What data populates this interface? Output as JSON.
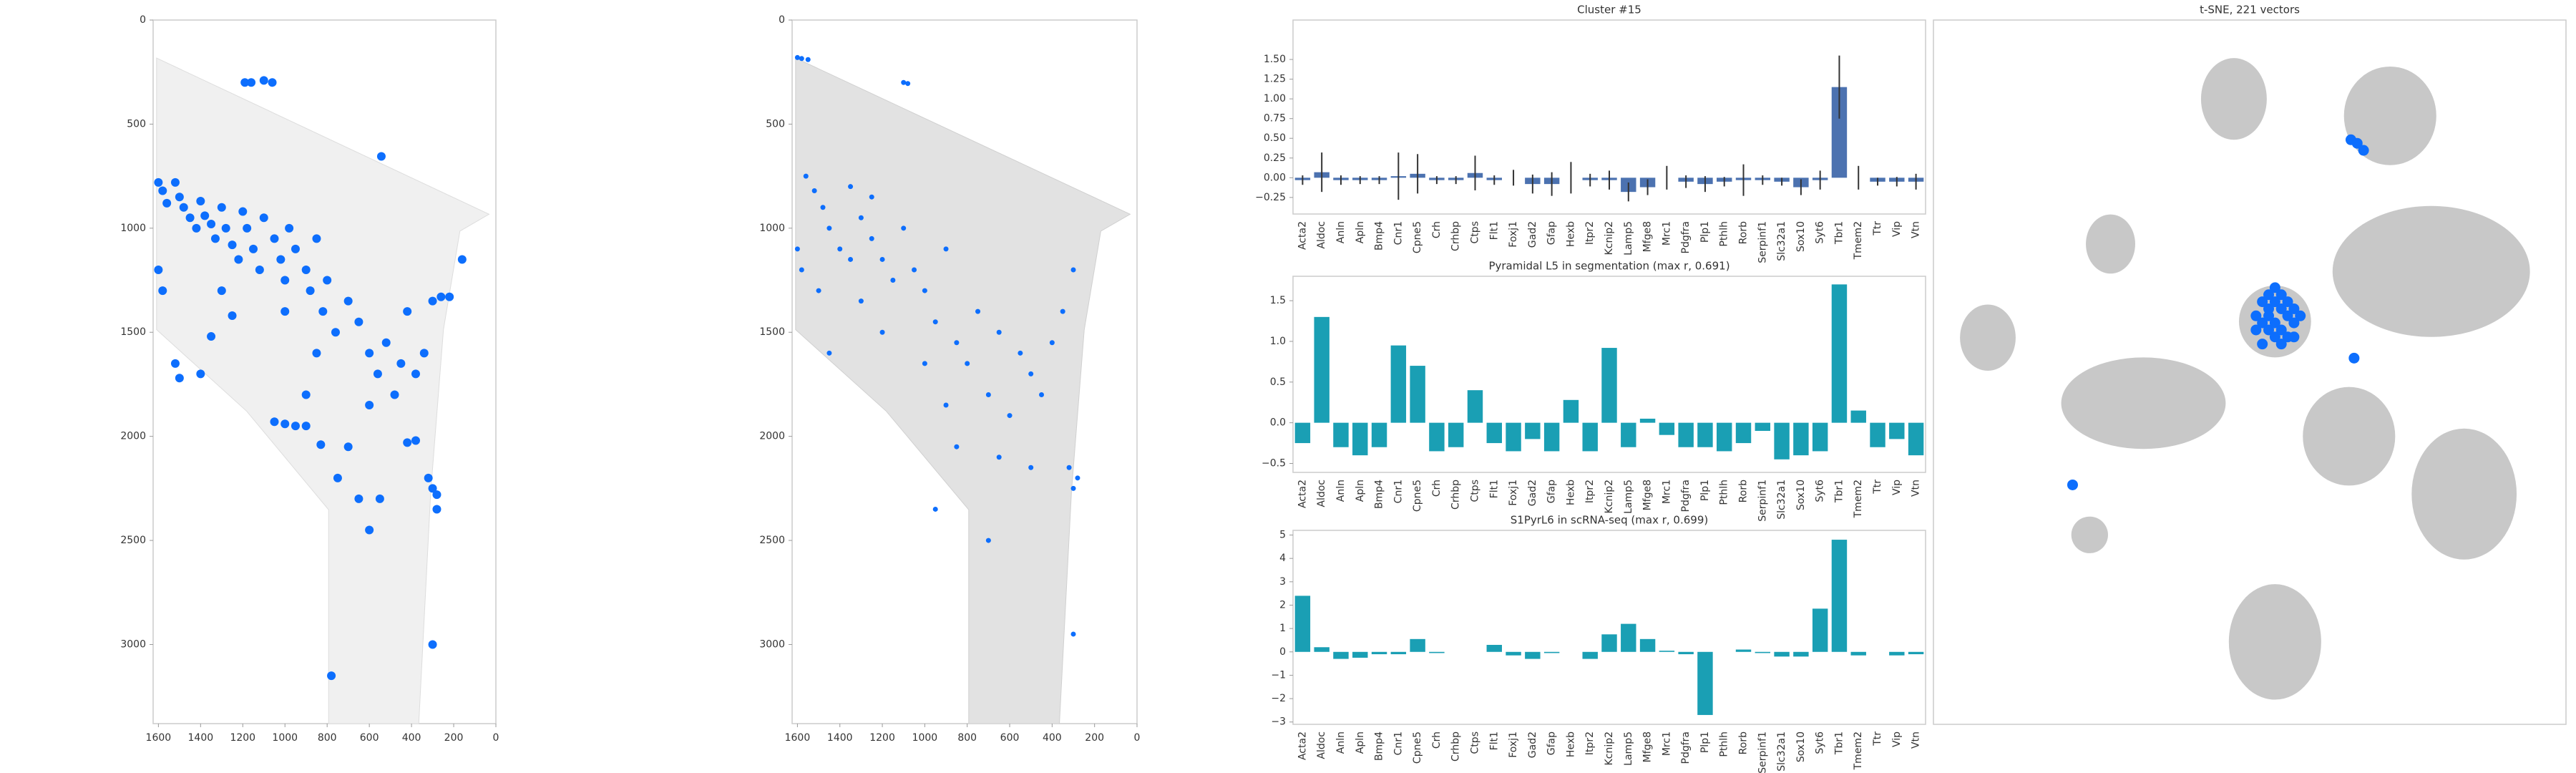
{
  "chart_data": [
    {
      "type": "scatter",
      "color": "#0d6efd",
      "xlim": [
        1625,
        0
      ],
      "ylim": [
        3380,
        0
      ],
      "xticks": [
        1600,
        1400,
        1200,
        1000,
        800,
        600,
        400,
        200,
        0
      ],
      "yticks": [
        0,
        500,
        1000,
        1500,
        2000,
        2500,
        3000
      ],
      "x": [
        1190,
        1160,
        1100,
        1060,
        543,
        1600,
        1580,
        1560,
        1520,
        1500,
        1480,
        1450,
        1420,
        1400,
        1380,
        1350,
        1330,
        1300,
        1280,
        1250,
        1220,
        1200,
        1180,
        1150,
        1120,
        1100,
        1050,
        1020,
        1000,
        980,
        950,
        900,
        880,
        850,
        820,
        800,
        760,
        700,
        650,
        600,
        560,
        520,
        480,
        450,
        420,
        380,
        340,
        300,
        260,
        220,
        160,
        1600,
        1580,
        1520,
        1500,
        1400,
        1350,
        1300,
        1250,
        1000,
        1050,
        1000,
        950,
        900,
        830,
        750,
        650,
        550,
        600,
        320,
        300,
        280,
        280,
        300,
        780,
        850,
        900,
        600,
        700,
        420,
        380
      ],
      "values": [
        300,
        300,
        290,
        300,
        655,
        780,
        820,
        880,
        780,
        850,
        900,
        950,
        1000,
        870,
        940,
        980,
        1050,
        900,
        1000,
        1080,
        1150,
        920,
        1000,
        1100,
        1200,
        950,
        1050,
        1150,
        1250,
        1000,
        1100,
        1200,
        1300,
        1050,
        1400,
        1250,
        1500,
        1350,
        1450,
        1600,
        1700,
        1550,
        1800,
        1650,
        1400,
        1700,
        1600,
        1350,
        1330,
        1330,
        1150,
        1200,
        1300,
        1650,
        1720,
        1700,
        1520,
        1300,
        1420,
        1400,
        1930,
        1940,
        1950,
        1950,
        2040,
        2200,
        2300,
        2300,
        2450,
        2200,
        2250,
        2280,
        2350,
        3000,
        3150,
        1600,
        1800,
        1850,
        2050,
        2030,
        2020
      ]
    },
    {
      "type": "scatter",
      "color": "#0d6efd",
      "xlim": [
        1625,
        0
      ],
      "ylim": [
        3380,
        0
      ],
      "xticks": [
        1600,
        1400,
        1200,
        1000,
        800,
        600,
        400,
        200,
        0
      ],
      "yticks": [
        0,
        500,
        1000,
        1500,
        2000,
        2500,
        3000
      ],
      "x": [
        1600,
        1580,
        1550,
        1100,
        1080,
        1560,
        1520,
        1480,
        1450,
        1400,
        1350,
        1300,
        1250,
        1200,
        1150,
        1100,
        1050,
        1000,
        950,
        900,
        850,
        800,
        750,
        700,
        650,
        600,
        550,
        500,
        450,
        400,
        350,
        300,
        280,
        300,
        320,
        1600,
        1580,
        1500,
        1450,
        1300,
        1200,
        1000,
        900,
        850,
        650,
        500,
        950,
        700,
        300,
        1350,
        1250
      ],
      "values": [
        180,
        185,
        190,
        300,
        305,
        750,
        820,
        900,
        1000,
        1100,
        1150,
        950,
        1050,
        1150,
        1250,
        1000,
        1200,
        1300,
        1450,
        1100,
        1550,
        1650,
        1400,
        1800,
        1500,
        1900,
        1600,
        1700,
        1800,
        1550,
        1400,
        1200,
        2200,
        2250,
        2150,
        1100,
        1200,
        1300,
        1600,
        1350,
        1500,
        1650,
        1850,
        2050,
        2100,
        2150,
        2350,
        2500,
        2950,
        800,
        850
      ]
    },
    {
      "type": "bar",
      "title": "Cluster #15",
      "color": "#4c72b0",
      "categories": [
        "Acta2",
        "Aldoc",
        "Anln",
        "Apln",
        "Bmp4",
        "Cnr1",
        "Cpne5",
        "Crh",
        "Crhbp",
        "Ctps",
        "Flt1",
        "Foxj1",
        "Gad2",
        "Gfap",
        "Hexb",
        "Itpr2",
        "Kcnip2",
        "Lamp5",
        "Mfge8",
        "Mrc1",
        "Pdgfra",
        "Plp1",
        "Pthlh",
        "Rorb",
        "Serpinf1",
        "Slc32a1",
        "Sox10",
        "Syt6",
        "Tbr1",
        "Tmem2",
        "Ttr",
        "Vip",
        "Vtn"
      ],
      "values": [
        -0.03,
        0.07,
        -0.03,
        -0.03,
        -0.03,
        0.02,
        0.05,
        -0.03,
        -0.03,
        0.06,
        -0.03,
        0.0,
        -0.08,
        -0.08,
        0.0,
        -0.03,
        -0.03,
        -0.18,
        -0.12,
        0.0,
        -0.05,
        -0.08,
        -0.05,
        -0.03,
        -0.03,
        -0.05,
        -0.12,
        -0.03,
        1.15,
        0.0,
        -0.05,
        -0.05,
        -0.05
      ],
      "errors": [
        0.06,
        0.25,
        0.06,
        0.05,
        0.05,
        0.3,
        0.25,
        0.05,
        0.05,
        0.22,
        0.06,
        0.1,
        0.12,
        0.15,
        0.2,
        0.08,
        0.12,
        0.12,
        0.1,
        0.15,
        0.08,
        0.1,
        0.06,
        0.2,
        0.06,
        0.05,
        0.1,
        0.12,
        0.4,
        0.15,
        0.05,
        0.06,
        0.1
      ],
      "ylim": [
        -0.46,
        2.0
      ],
      "yticks": [
        {
          "value": -0.25,
          "label": "−0.25"
        },
        {
          "value": 0,
          "label": "0.00"
        },
        {
          "value": 0.25,
          "label": "0.25"
        },
        {
          "value": 0.5,
          "label": "0.50"
        },
        {
          "value": 0.75,
          "label": "0.75"
        },
        {
          "value": 1,
          "label": "1.00"
        },
        {
          "value": 1.25,
          "label": "1.25"
        },
        {
          "value": 1.5,
          "label": "1.50"
        }
      ]
    },
    {
      "type": "bar",
      "title": "Pyramidal L5 in segmentation (max r, 0.691)",
      "color": "#1a9fb4",
      "categories": [
        "Acta2",
        "Aldoc",
        "Anln",
        "Apln",
        "Bmp4",
        "Cnr1",
        "Cpne5",
        "Crh",
        "Crhbp",
        "Ctps",
        "Flt1",
        "Foxj1",
        "Gad2",
        "Gfap",
        "Hexb",
        "Itpr2",
        "Kcnip2",
        "Lamp5",
        "Mfge8",
        "Mrc1",
        "Pdgfra",
        "Plp1",
        "Pthlh",
        "Rorb",
        "Serpinf1",
        "Slc32a1",
        "Sox10",
        "Syt6",
        "Tbr1",
        "Tmem2",
        "Ttr",
        "Vip",
        "Vtn"
      ],
      "values": [
        -0.25,
        1.3,
        -0.3,
        -0.4,
        -0.3,
        0.95,
        0.7,
        -0.35,
        -0.3,
        0.4,
        -0.25,
        -0.35,
        -0.2,
        -0.35,
        0.28,
        -0.35,
        0.92,
        -0.3,
        0.05,
        -0.15,
        -0.3,
        -0.3,
        -0.35,
        -0.25,
        -0.1,
        -0.45,
        -0.4,
        -0.35,
        1.7,
        0.15,
        -0.3,
        -0.2,
        -0.4
      ],
      "ylim": [
        -0.61,
        1.8
      ],
      "yticks": [
        {
          "value": -0.5,
          "label": "−0.5"
        },
        {
          "value": 0,
          "label": "0.0"
        },
        {
          "value": 0.5,
          "label": "0.5"
        },
        {
          "value": 1,
          "label": "1.0"
        },
        {
          "value": 1.5,
          "label": "1.5"
        }
      ]
    },
    {
      "type": "bar",
      "title": "S1PyrL6 in scRNA-seq (max r, 0.699)",
      "color": "#1a9fb4",
      "categories": [
        "Acta2",
        "Aldoc",
        "Anln",
        "Apln",
        "Bmp4",
        "Cnr1",
        "Cpne5",
        "Crh",
        "Crhbp",
        "Ctps",
        "Flt1",
        "Foxj1",
        "Gad2",
        "Gfap",
        "Hexb",
        "Itpr2",
        "Kcnip2",
        "Lamp5",
        "Mfge8",
        "Mrc1",
        "Pdgfra",
        "Plp1",
        "Pthlh",
        "Rorb",
        "Serpinf1",
        "Slc32a1",
        "Sox10",
        "Syt6",
        "Tbr1",
        "Tmem2",
        "Ttr",
        "Vip",
        "Vtn"
      ],
      "values": [
        2.4,
        0.2,
        -0.3,
        -0.25,
        -0.1,
        -0.1,
        0.55,
        -0.05,
        0,
        0,
        0.3,
        -0.15,
        -0.3,
        -0.05,
        0,
        -0.3,
        0.75,
        1.2,
        0.55,
        0.05,
        -0.1,
        -2.7,
        0,
        0.1,
        -0.05,
        -0.2,
        -0.2,
        1.85,
        4.8,
        -0.15,
        0,
        -0.15,
        -0.1
      ],
      "ylim": [
        -3.1,
        5.2
      ],
      "yticks": [
        {
          "value": -3,
          "label": "−3"
        },
        {
          "value": -2,
          "label": "−2"
        },
        {
          "value": -1,
          "label": "−1"
        },
        0,
        1,
        2,
        3,
        4,
        5
      ]
    },
    {
      "type": "scatter",
      "title": "t-SNE, 221 vectors",
      "color": "#0d6efd",
      "xlim": [
        0,
        100
      ],
      "ylim": [
        100,
        0
      ],
      "x": [
        52,
        53,
        54,
        55,
        56,
        57,
        52,
        53,
        54,
        55,
        56,
        51,
        53,
        55,
        57,
        58,
        52,
        54,
        56,
        53,
        55,
        57,
        51,
        54,
        66,
        67,
        68,
        66.5,
        22
      ],
      "values": [
        40,
        41,
        40,
        41,
        42,
        43,
        43,
        44,
        45,
        44,
        45,
        42,
        39,
        39,
        41,
        42,
        46,
        43,
        40,
        42,
        46,
        45,
        44,
        38,
        17,
        17.5,
        18.5,
        48,
        66
      ]
    }
  ]
}
